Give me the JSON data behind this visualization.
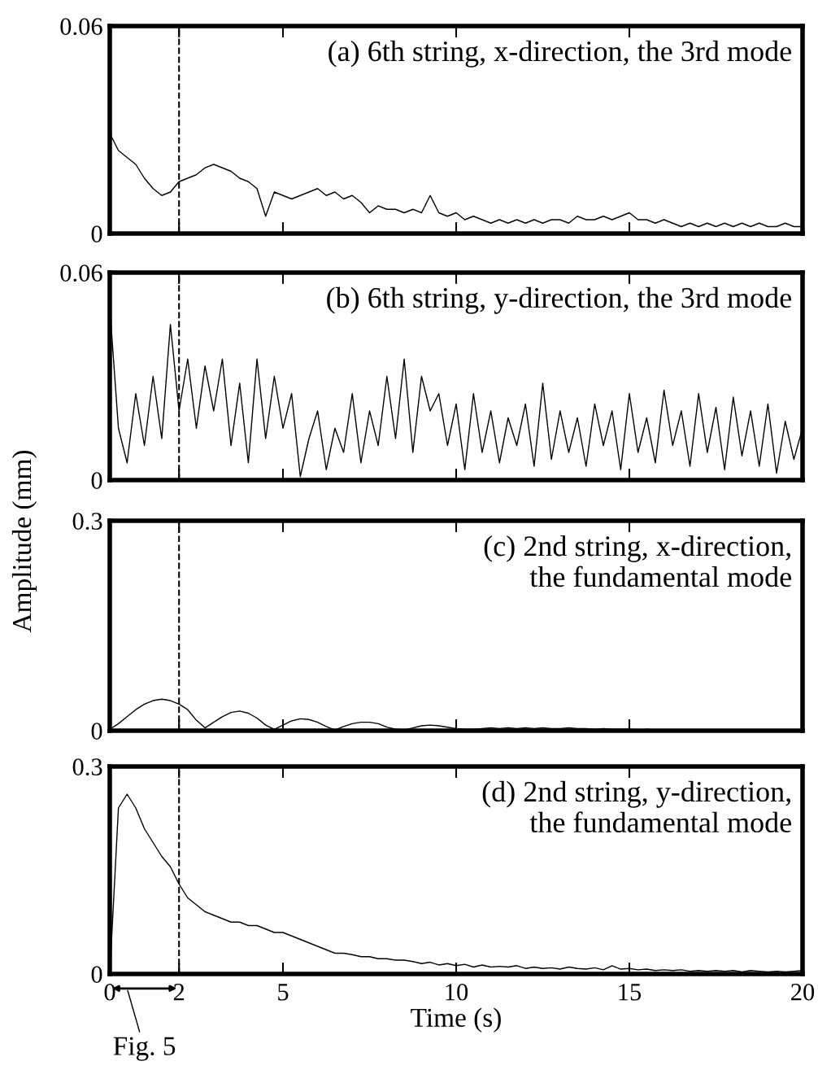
{
  "chart_data": [
    {
      "type": "line",
      "title": "(a) 6th string, x-direction, the 3rd mode",
      "xlim": [
        0,
        20
      ],
      "xticks": [
        0,
        2,
        5,
        10,
        15,
        20
      ],
      "ylim": [
        0,
        0.06
      ],
      "yticks": [
        0,
        0.06
      ],
      "tick_labels": "y",
      "grid": false,
      "legend": false,
      "ref_lines": [
        {
          "axis": "x",
          "value": 2,
          "line_style": "dashed",
          "color": "#000000"
        }
      ],
      "x": [
        0,
        0.25,
        0.5,
        0.75,
        1,
        1.25,
        1.5,
        1.75,
        2,
        2.25,
        2.5,
        2.75,
        3,
        3.25,
        3.5,
        3.75,
        4,
        4.25,
        4.5,
        4.75,
        5,
        5.25,
        5.5,
        5.75,
        6,
        6.25,
        6.5,
        6.75,
        7,
        7.25,
        7.5,
        7.75,
        8,
        8.25,
        8.5,
        8.75,
        9,
        9.25,
        9.5,
        9.75,
        10,
        10.25,
        10.5,
        10.75,
        11,
        11.25,
        11.5,
        11.75,
        12,
        12.25,
        12.5,
        12.75,
        13,
        13.25,
        13.5,
        13.75,
        14,
        14.25,
        14.5,
        14.75,
        15,
        15.25,
        15.5,
        15.75,
        16,
        16.25,
        16.5,
        16.75,
        17,
        17.25,
        17.5,
        17.75,
        18,
        18.25,
        18.5,
        18.75,
        19,
        19.25,
        19.5,
        19.75,
        20
      ],
      "series": [
        {
          "color": "#000000",
          "values": [
            0.029,
            0.024,
            0.022,
            0.02,
            0.016,
            0.013,
            0.011,
            0.012,
            0.015,
            0.016,
            0.017,
            0.019,
            0.02,
            0.019,
            0.018,
            0.016,
            0.015,
            0.013,
            0.005,
            0.012,
            0.011,
            0.01,
            0.011,
            0.012,
            0.013,
            0.011,
            0.012,
            0.01,
            0.011,
            0.009,
            0.006,
            0.008,
            0.007,
            0.007,
            0.006,
            0.007,
            0.006,
            0.011,
            0.006,
            0.005,
            0.006,
            0.004,
            0.005,
            0.004,
            0.003,
            0.004,
            0.003,
            0.004,
            0.003,
            0.004,
            0.003,
            0.004,
            0.004,
            0.003,
            0.005,
            0.004,
            0.004,
            0.005,
            0.004,
            0.005,
            0.006,
            0.004,
            0.004,
            0.003,
            0.004,
            0.003,
            0.002,
            0.003,
            0.002,
            0.003,
            0.002,
            0.003,
            0.002,
            0.003,
            0.002,
            0.003,
            0.002,
            0.002,
            0.003,
            0.002,
            0.002
          ]
        }
      ]
    },
    {
      "type": "line",
      "title": "(b) 6th string, y-direction, the 3rd mode",
      "ylabel": "Amplitude (mm)",
      "xlim": [
        0,
        20
      ],
      "xticks": [
        0,
        2,
        5,
        10,
        15,
        20
      ],
      "ylim": [
        0,
        0.06
      ],
      "yticks": [
        0,
        0.06
      ],
      "tick_labels": "y",
      "grid": false,
      "legend": false,
      "ref_lines": [
        {
          "axis": "x",
          "value": 2,
          "line_style": "dashed",
          "color": "#000000"
        }
      ],
      "x": [
        0,
        0.25,
        0.5,
        0.75,
        1,
        1.25,
        1.5,
        1.75,
        2,
        2.25,
        2.5,
        2.75,
        3,
        3.25,
        3.5,
        3.75,
        4,
        4.25,
        4.5,
        4.75,
        5,
        5.25,
        5.5,
        5.75,
        6,
        6.25,
        6.5,
        6.75,
        7,
        7.25,
        7.5,
        7.75,
        8,
        8.25,
        8.5,
        8.75,
        9,
        9.25,
        9.5,
        9.75,
        10,
        10.25,
        10.5,
        10.75,
        11,
        11.25,
        11.5,
        11.75,
        12,
        12.25,
        12.5,
        12.75,
        13,
        13.25,
        13.5,
        13.75,
        14,
        14.25,
        14.5,
        14.75,
        15,
        15.25,
        15.5,
        15.75,
        16,
        16.25,
        16.5,
        16.75,
        17,
        17.25,
        17.5,
        17.75,
        18,
        18.25,
        18.5,
        18.75,
        19,
        19.25,
        19.5,
        19.75,
        20
      ],
      "series": [
        {
          "color": "#000000",
          "values": [
            0.05,
            0.015,
            0.005,
            0.025,
            0.01,
            0.03,
            0.012,
            0.045,
            0.02,
            0.035,
            0.015,
            0.033,
            0.02,
            0.035,
            0.01,
            0.028,
            0.005,
            0.035,
            0.012,
            0.03,
            0.015,
            0.025,
            0.001,
            0.012,
            0.02,
            0.003,
            0.015,
            0.008,
            0.025,
            0.005,
            0.02,
            0.01,
            0.03,
            0.012,
            0.035,
            0.008,
            0.03,
            0.02,
            0.025,
            0.01,
            0.022,
            0.003,
            0.025,
            0.008,
            0.02,
            0.005,
            0.018,
            0.01,
            0.022,
            0.004,
            0.028,
            0.006,
            0.02,
            0.008,
            0.018,
            0.004,
            0.022,
            0.01,
            0.02,
            0.003,
            0.025,
            0.008,
            0.018,
            0.005,
            0.026,
            0.01,
            0.02,
            0.004,
            0.025,
            0.008,
            0.021,
            0.003,
            0.024,
            0.007,
            0.02,
            0.004,
            0.022,
            0.002,
            0.017,
            0.006,
            0.015
          ]
        }
      ]
    },
    {
      "type": "line",
      "title": "(c) 2nd string, x-direction,\nthe fundamental mode",
      "xlim": [
        0,
        20
      ],
      "xticks": [
        0,
        2,
        5,
        10,
        15,
        20
      ],
      "ylim": [
        0,
        0.3
      ],
      "yticks": [
        0,
        0.3
      ],
      "tick_labels": "y",
      "grid": false,
      "legend": false,
      "ref_lines": [
        {
          "axis": "x",
          "value": 2,
          "line_style": "dashed",
          "color": "#000000"
        }
      ],
      "x": [
        0,
        0.25,
        0.5,
        0.75,
        1,
        1.25,
        1.5,
        1.75,
        2,
        2.25,
        2.5,
        2.75,
        3,
        3.25,
        3.5,
        3.75,
        4,
        4.25,
        4.5,
        4.75,
        5,
        5.25,
        5.5,
        5.75,
        6,
        6.25,
        6.5,
        6.75,
        7,
        7.25,
        7.5,
        7.75,
        8,
        8.25,
        8.5,
        8.75,
        9,
        9.25,
        9.5,
        9.75,
        10,
        10.25,
        10.5,
        10.75,
        11,
        11.25,
        11.5,
        11.75,
        12,
        12.25,
        12.5,
        12.75,
        13,
        13.25,
        13.5,
        13.75,
        14,
        14.25,
        14.5,
        14.75,
        15,
        15.25,
        15.5,
        15.75,
        16,
        16.25,
        16.5,
        16.75,
        17,
        17.25,
        17.5,
        17.75,
        18,
        18.25,
        18.5,
        18.75,
        19,
        19.25,
        19.5,
        19.75,
        20
      ],
      "series": [
        {
          "color": "#000000",
          "values": [
            0.002,
            0.01,
            0.02,
            0.03,
            0.038,
            0.043,
            0.045,
            0.043,
            0.038,
            0.03,
            0.015,
            0.004,
            0.012,
            0.02,
            0.026,
            0.028,
            0.025,
            0.018,
            0.008,
            0.002,
            0.008,
            0.014,
            0.017,
            0.016,
            0.012,
            0.006,
            0.001,
            0.006,
            0.01,
            0.012,
            0.012,
            0.01,
            0.005,
            0.002,
            0.001,
            0.004,
            0.007,
            0.008,
            0.007,
            0.005,
            0.003,
            0.002,
            0.002,
            0.003,
            0.004,
            0.003,
            0.004,
            0.003,
            0.004,
            0.003,
            0.004,
            0.003,
            0.003,
            0.004,
            0.003,
            0.003,
            0.002,
            0.003,
            0.002,
            0.002,
            0.002,
            0.001,
            0.002,
            0.001,
            0.001,
            0.001,
            0.001,
            0.001,
            0.001,
            0.001,
            0.001,
            0.001,
            0.001,
            0.001,
            0.001,
            0.001,
            0.001,
            0.001,
            0.001,
            0.001,
            0.001
          ]
        }
      ]
    },
    {
      "type": "line",
      "title": "(d) 2nd string, y-direction,\nthe fundamental mode",
      "xlabel": "Time (s)",
      "xlim": [
        0,
        20
      ],
      "xticks": [
        0,
        2,
        5,
        10,
        15,
        20
      ],
      "ylim": [
        0,
        0.3
      ],
      "yticks": [
        0,
        0.3
      ],
      "grid": false,
      "legend": false,
      "ref_lines": [
        {
          "axis": "x",
          "value": 2,
          "line_style": "dashed",
          "color": "#000000"
        }
      ],
      "annotations": [
        "Fig. 5"
      ],
      "x": [
        0,
        0.25,
        0.5,
        0.75,
        1,
        1.25,
        1.5,
        1.75,
        2,
        2.25,
        2.5,
        2.75,
        3,
        3.25,
        3.5,
        3.75,
        4,
        4.25,
        4.5,
        4.75,
        5,
        5.25,
        5.5,
        5.75,
        6,
        6.25,
        6.5,
        6.75,
        7,
        7.25,
        7.5,
        7.75,
        8,
        8.25,
        8.5,
        8.75,
        9,
        9.25,
        9.5,
        9.75,
        10,
        10.25,
        10.5,
        10.75,
        11,
        11.25,
        11.5,
        11.75,
        12,
        12.25,
        12.5,
        12.75,
        13,
        13.25,
        13.5,
        13.75,
        14,
        14.25,
        14.5,
        14.75,
        15,
        15.25,
        15.5,
        15.75,
        16,
        16.25,
        16.5,
        16.75,
        17,
        17.25,
        17.5,
        17.75,
        18,
        18.25,
        18.5,
        18.75,
        19,
        19.25,
        19.5,
        19.75,
        20
      ],
      "series": [
        {
          "color": "#000000",
          "values": [
            0,
            0.24,
            0.26,
            0.24,
            0.21,
            0.19,
            0.17,
            0.155,
            0.13,
            0.11,
            0.1,
            0.09,
            0.085,
            0.08,
            0.075,
            0.075,
            0.07,
            0.07,
            0.065,
            0.06,
            0.06,
            0.055,
            0.05,
            0.045,
            0.04,
            0.035,
            0.03,
            0.03,
            0.028,
            0.025,
            0.025,
            0.022,
            0.022,
            0.02,
            0.02,
            0.018,
            0.015,
            0.017,
            0.013,
            0.015,
            0.012,
            0.014,
            0.01,
            0.013,
            0.01,
            0.011,
            0.01,
            0.012,
            0.008,
            0.01,
            0.008,
            0.009,
            0.007,
            0.01,
            0.008,
            0.007,
            0.009,
            0.006,
            0.012,
            0.007,
            0.008,
            0.006,
            0.007,
            0.005,
            0.006,
            0.005,
            0.006,
            0.004,
            0.005,
            0.004,
            0.005,
            0.004,
            0.005,
            0.003,
            0.005,
            0.004,
            0.003,
            0.004,
            0.003,
            0.004,
            0.005
          ]
        }
      ]
    }
  ]
}
